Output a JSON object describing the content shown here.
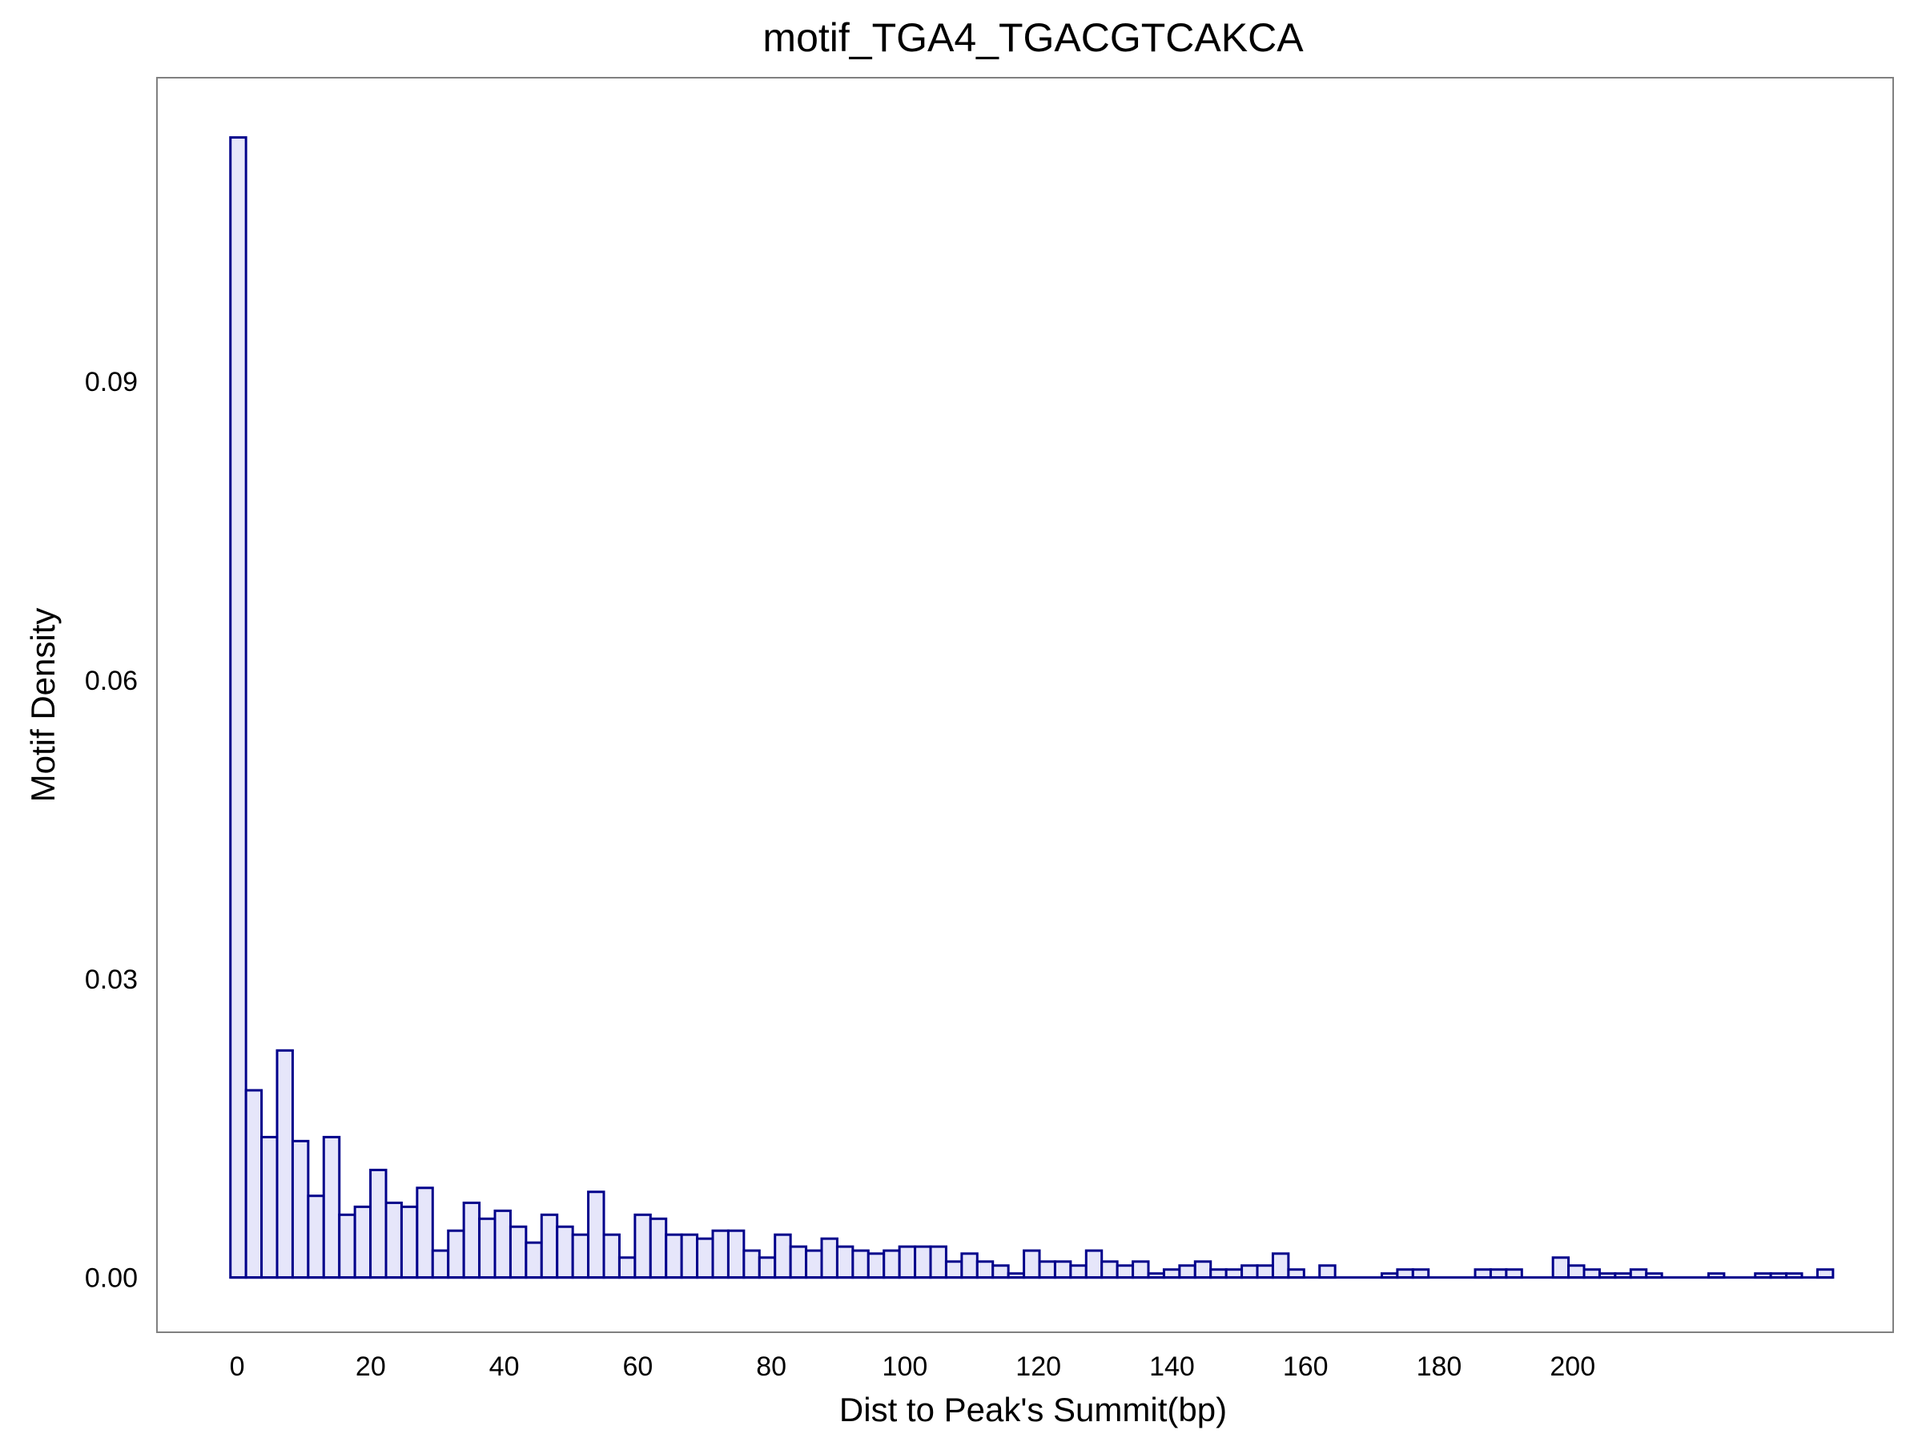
{
  "chart_data": {
    "type": "bar",
    "title": "motif_TGA4_TGACGTCAKCA",
    "xlabel": "Dist to Peak's Summit(bp)",
    "ylabel": "Motif Density",
    "x_ticks": [
      0,
      20,
      40,
      60,
      80,
      100,
      120,
      140,
      160,
      180,
      200
    ],
    "y_ticks": [
      0.0,
      0.03,
      0.06,
      0.09
    ],
    "y_tick_labels": [
      "0.00",
      "0.03",
      "0.06",
      "0.09"
    ],
    "x_tick_labels": [
      "0",
      "20",
      "40",
      "60",
      "80",
      "100",
      "120",
      "140",
      "160",
      "180",
      "200"
    ],
    "xlim": [
      -12,
      248
    ],
    "ylim": [
      -0.0055,
      0.1205
    ],
    "bin_start": -1,
    "bin_width": 2.33,
    "values": [
      0.1145,
      0.0188,
      0.0141,
      0.0228,
      0.0137,
      0.0082,
      0.0141,
      0.0063,
      0.0071,
      0.0108,
      0.0075,
      0.0071,
      0.009,
      0.0027,
      0.0047,
      0.0075,
      0.0059,
      0.0067,
      0.0051,
      0.0035,
      0.0063,
      0.0051,
      0.0043,
      0.0086,
      0.0043,
      0.002,
      0.0063,
      0.0059,
      0.0043,
      0.0043,
      0.0039,
      0.0047,
      0.0047,
      0.0027,
      0.002,
      0.0043,
      0.0031,
      0.0027,
      0.0039,
      0.0031,
      0.0027,
      0.0024,
      0.0027,
      0.0031,
      0.0031,
      0.0031,
      0.0016,
      0.0024,
      0.0016,
      0.0012,
      0.0004,
      0.0027,
      0.0016,
      0.0016,
      0.0012,
      0.0027,
      0.0016,
      0.0012,
      0.0016,
      0.0004,
      0.0008,
      0.0012,
      0.0016,
      0.0008,
      0.0008,
      0.0012,
      0.0012,
      0.0024,
      0.0008,
      0.0,
      0.0012,
      0.0,
      0.0,
      0.0,
      0.0004,
      0.0008,
      0.0008,
      0.0,
      0.0,
      0.0,
      0.0008,
      0.0008,
      0.0008,
      0.0,
      0.0,
      0.002,
      0.0012,
      0.0008,
      0.0004,
      0.0004,
      0.0008,
      0.0004,
      0.0,
      0.0,
      0.0,
      0.0004,
      0.0,
      0.0,
      0.0004,
      0.0004,
      0.0004,
      0.0,
      0.0008
    ],
    "colors": {
      "bar_fill": "#e6e6fa",
      "bar_stroke": "#00008b",
      "frame": "#808080"
    },
    "grid": false,
    "legend": "none"
  }
}
